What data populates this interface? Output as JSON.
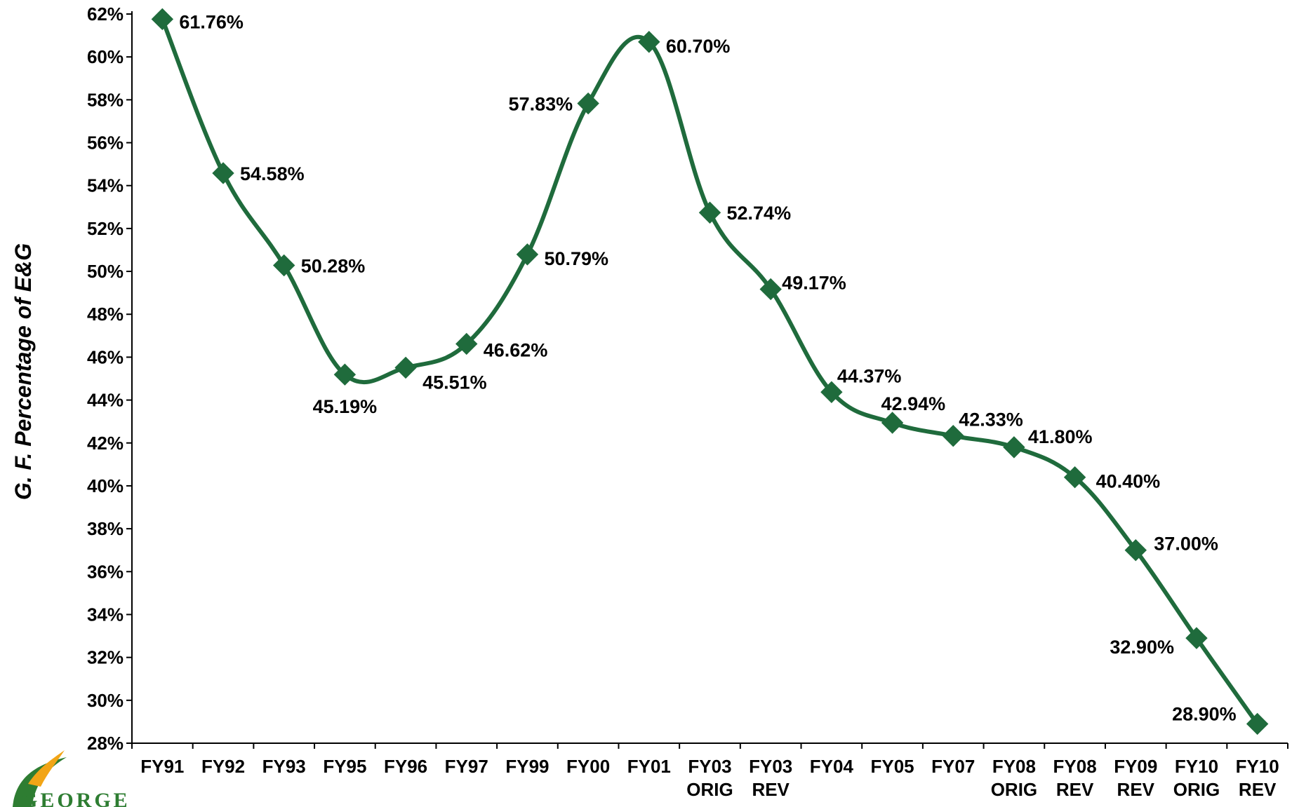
{
  "chart_data": {
    "type": "line",
    "title": "",
    "xlabel": "",
    "ylabel": "G. F. Percentage of E&G",
    "ylim": [
      28,
      62
    ],
    "ytick_step": 2,
    "ytick_suffix": "%",
    "grid": false,
    "legend": "none",
    "series_color": "#1f6b3c",
    "categories": [
      [
        "FY91"
      ],
      [
        "FY92"
      ],
      [
        "FY93"
      ],
      [
        "FY95"
      ],
      [
        "FY96"
      ],
      [
        "FY97"
      ],
      [
        "FY99"
      ],
      [
        "FY00"
      ],
      [
        "FY01"
      ],
      [
        "FY03",
        "ORIG"
      ],
      [
        "FY03",
        "REV"
      ],
      [
        "FY04"
      ],
      [
        "FY05"
      ],
      [
        "FY07"
      ],
      [
        "FY08",
        "ORIG"
      ],
      [
        "FY08",
        "REV"
      ],
      [
        "FY09",
        "REV"
      ],
      [
        "FY10",
        "ORIG"
      ],
      [
        "FY10",
        "REV"
      ]
    ],
    "values": [
      61.76,
      54.58,
      50.28,
      45.19,
      45.51,
      46.62,
      50.79,
      57.83,
      60.7,
      52.74,
      49.17,
      44.37,
      42.94,
      42.33,
      41.8,
      40.4,
      37.0,
      32.9,
      28.9
    ],
    "data_labels": [
      "61.76%",
      "54.58%",
      "50.28%",
      "45.19%",
      "45.51%",
      "46.62%",
      "50.79%",
      "57.83%",
      "60.70%",
      "52.74%",
      "49.17%",
      "44.37%",
      "42.94%",
      "42.33%",
      "41.80%",
      "40.40%",
      "37.00%",
      "32.90%",
      "28.90%"
    ]
  },
  "logo": {
    "text": "GEORGE",
    "color": "#2e7d32",
    "accent_color": "#f2a516"
  }
}
